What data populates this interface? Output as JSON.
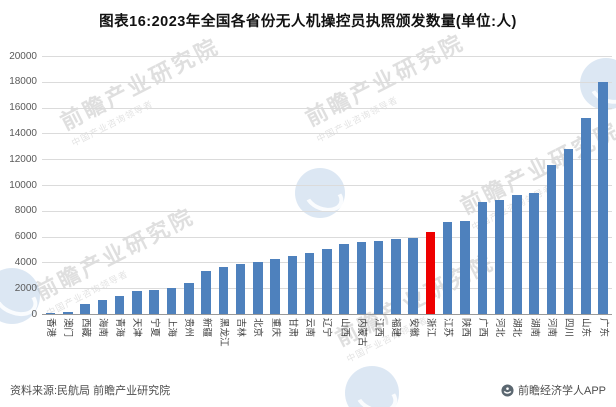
{
  "title": "图表16:2023年全国各省份无人机操控员执照颁发数量(单位:人)",
  "footer": {
    "source": "资料来源:民航局 前瞻产业研究院",
    "brand": "前瞻经济学人APP"
  },
  "watermark": {
    "text": "前瞻产业研究院",
    "subtext": "中国产业咨询领导者"
  },
  "colors": {
    "bar": "#4E81BD",
    "highlight": "#EE0000",
    "grid": "#DBDBDB",
    "axis": "#9A9A9A",
    "title_text": "#111111",
    "tick_text": "#595959"
  },
  "chart_data": {
    "type": "bar",
    "title": "2023年全国各省份无人机操控员执照颁发数量",
    "unit": "人",
    "categories": [
      "香港",
      "澳门",
      "西藏",
      "海南",
      "青海",
      "天津",
      "宁夏",
      "上海",
      "贵州",
      "新疆",
      "黑龙江",
      "吉林",
      "北京",
      "重庆",
      "甘肃",
      "云南",
      "辽宁",
      "山西",
      "内蒙古",
      "江西",
      "福建",
      "安徽",
      "浙江",
      "江苏",
      "陕西",
      "广西",
      "河北",
      "湖北",
      "湖南",
      "河南",
      "四川",
      "山东",
      "广东"
    ],
    "values": [
      100,
      150,
      800,
      1100,
      1400,
      1800,
      1900,
      2000,
      2400,
      3300,
      3650,
      3900,
      4050,
      4300,
      4500,
      4700,
      5050,
      5450,
      5550,
      5650,
      5800,
      5900,
      6350,
      7100,
      7200,
      8700,
      8850,
      9200,
      9400,
      11550,
      12800,
      15200,
      18000
    ],
    "highlight_index": 22,
    "highlight_category": "浙江",
    "ylim": [
      0,
      20000
    ],
    "yticks": [
      0,
      2000,
      4000,
      6000,
      8000,
      10000,
      12000,
      14000,
      16000,
      18000,
      20000
    ],
    "grid": true,
    "legend": null,
    "xlabel": "",
    "ylabel": "",
    "xlabel_rotation": 90,
    "sort": "ascending"
  }
}
